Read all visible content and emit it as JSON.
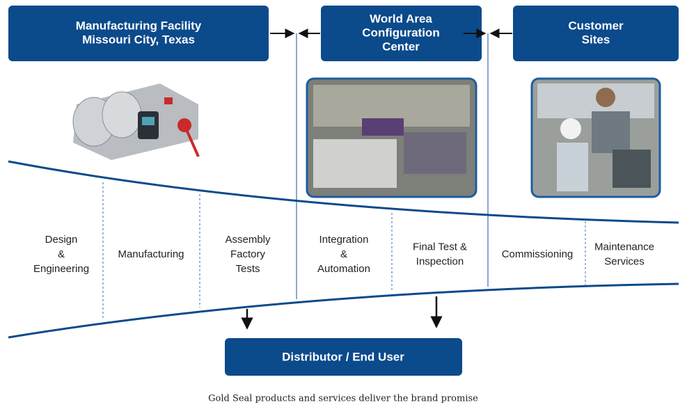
{
  "boxes": [
    {
      "lines": [
        "Manufacturing Facility",
        "Missouri City, Texas"
      ]
    },
    {
      "lines": [
        "World Area",
        "Configuration",
        "Center"
      ]
    },
    {
      "lines": [
        "Customer",
        "Sites"
      ]
    }
  ],
  "stages": [
    {
      "lines": [
        "Design",
        "&",
        "Engineering"
      ]
    },
    {
      "lines": [
        "Manufacturing"
      ]
    },
    {
      "lines": [
        "Assembly",
        "Factory",
        "Tests"
      ]
    },
    {
      "lines": [
        "Integration",
        "&",
        "Automation"
      ]
    },
    {
      "lines": [
        "Final Test &",
        "Inspection"
      ]
    },
    {
      "lines": [
        "Commissioning"
      ]
    },
    {
      "lines": [
        "Maintenance",
        "Services"
      ]
    }
  ],
  "destination": "Distributor / End User",
  "caption": "Gold Seal products and services deliver the brand promise"
}
